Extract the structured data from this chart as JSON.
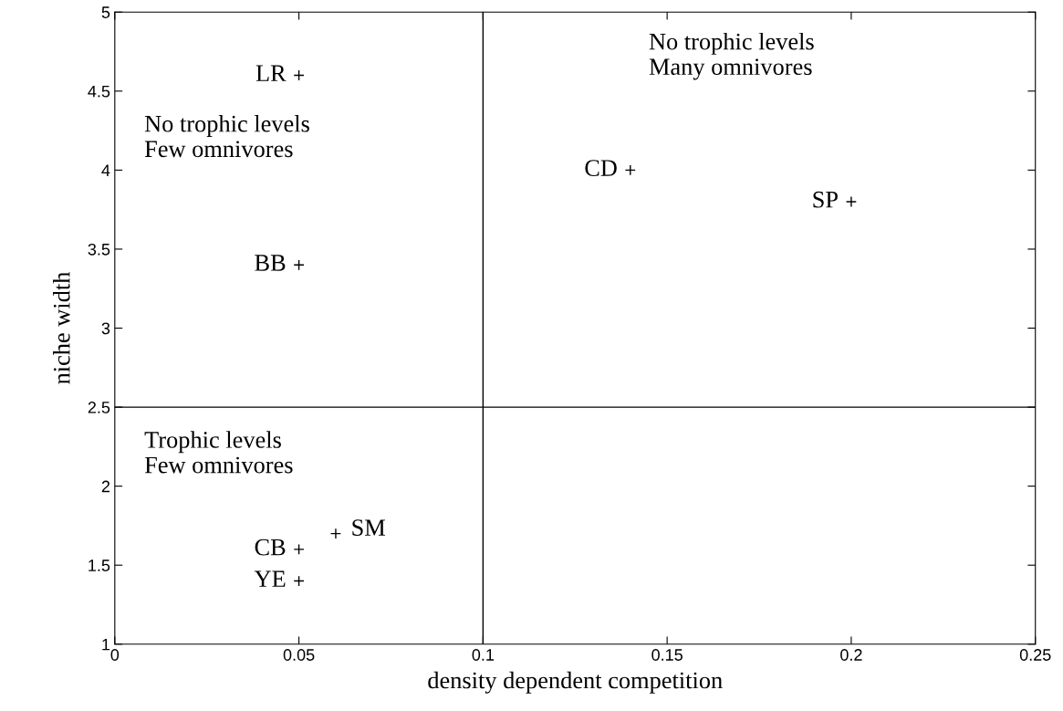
{
  "chart_data": {
    "type": "scatter",
    "xlabel": "density dependent competition",
    "ylabel": "niche width",
    "series": [
      {
        "color": "#000000",
        "x": [
          0.05,
          0.14,
          0.2,
          0.05,
          0.06,
          0.05,
          0.05
        ],
        "values": [
          4.6,
          4.0,
          3.8,
          3.4,
          1.7,
          1.6,
          1.4
        ]
      }
    ],
    "marker": "cross",
    "xlim": [
      0,
      0.25
    ],
    "ylim": [
      1,
      5
    ],
    "xticks": [
      0,
      0.05,
      0.1,
      0.15,
      0.2,
      0.25
    ],
    "yticks": [
      1,
      1.5,
      2,
      2.5,
      3,
      3.5,
      4,
      4.5,
      5
    ],
    "ref_lines": [
      {
        "axis": "x",
        "value": 0.1,
        "color": "#000000"
      },
      {
        "axis": "y",
        "value": 2.5,
        "color": "#000000"
      }
    ],
    "annotations": [
      {
        "text": "LR",
        "x": 0.05,
        "y": 4.6
      },
      {
        "text": "CD",
        "x": 0.14,
        "y": 4.0
      },
      {
        "text": "SP",
        "x": 0.2,
        "y": 3.8
      },
      {
        "text": "BB",
        "x": 0.05,
        "y": 3.4
      },
      {
        "text": "SM",
        "x": 0.06,
        "y": 1.7
      },
      {
        "text": "CB",
        "x": 0.05,
        "y": 1.6
      },
      {
        "text": "YE",
        "x": 0.05,
        "y": 1.4
      },
      "No trophic levels\nFew omnivores",
      "No trophic levels\nMany omnivores",
      "Trophic levels\nFew omnivores"
    ],
    "grid": false,
    "legend": false
  }
}
